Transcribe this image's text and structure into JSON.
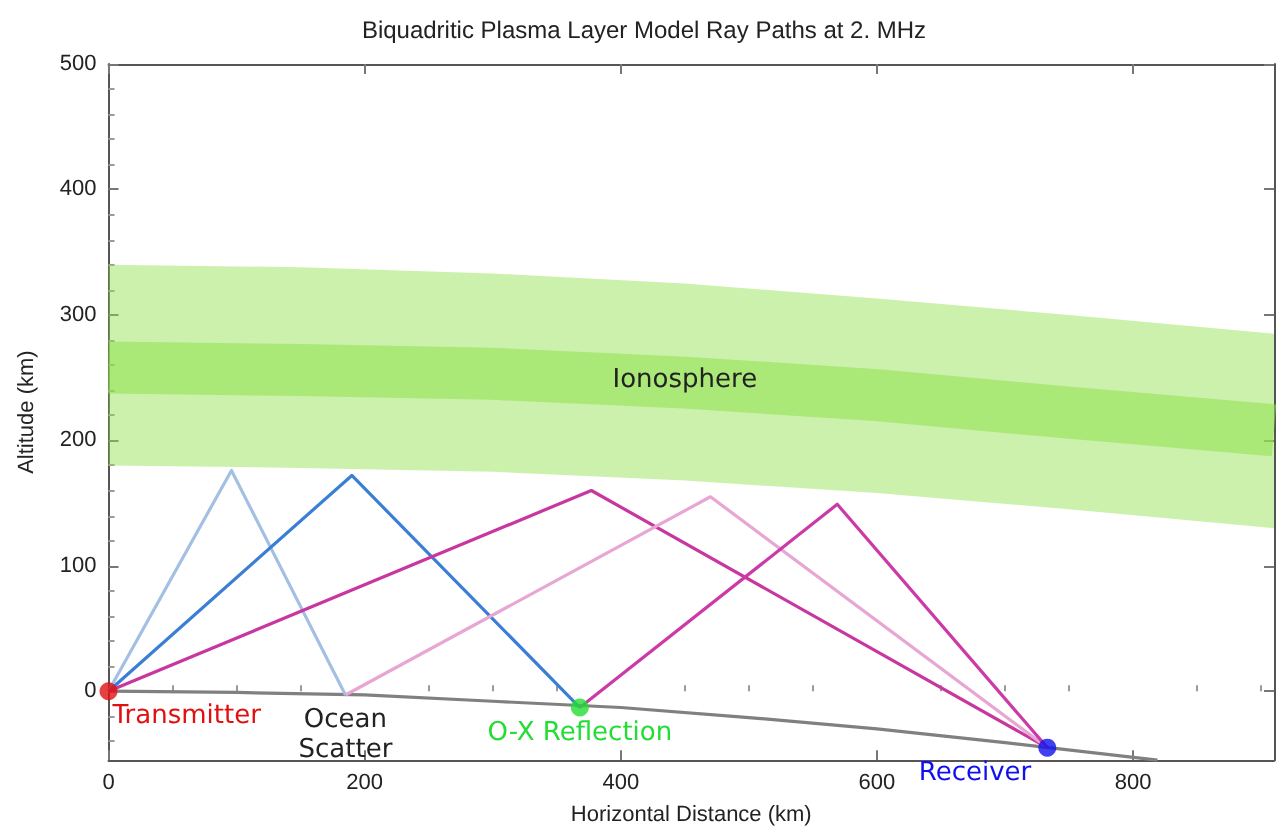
{
  "chart_data": {
    "type": "line",
    "title": "Biquadritic Plasma Layer Model Ray Paths at 2. MHz",
    "xlabel": "Horizontal Distance (km)",
    "ylabel": "Altitude (km)",
    "xlim": [
      0,
      910
    ],
    "ylim": [
      -55,
      500
    ],
    "xticks": [
      0,
      200,
      400,
      600,
      800
    ],
    "yticks": [
      0,
      100,
      200,
      300,
      400,
      500
    ],
    "grid": false,
    "series": [
      {
        "color": "#8ee04a",
        "x": [
          0,
          150,
          300,
          450,
          600,
          750,
          910
        ],
        "values": [
          258,
          256,
          253,
          246,
          236,
          222,
          208
        ],
        "lower": [
          180,
          178,
          175,
          168,
          158,
          145,
          130
        ],
        "upper": [
          340,
          338,
          333,
          325,
          313,
          300,
          285
        ]
      },
      {
        "color": "#808080",
        "x": [
          0,
          100,
          200,
          300,
          400,
          500,
          600,
          700,
          819
        ],
        "values": [
          0,
          -1,
          -3,
          -8,
          -13,
          -21,
          -30,
          -41,
          -55
        ]
      },
      {
        "color": "#a3c0e3",
        "x": [
          0,
          96,
          185
        ],
        "values": [
          0,
          176,
          -3
        ]
      },
      {
        "color": "#3a7fd5",
        "x": [
          0,
          190,
          368
        ],
        "values": [
          0,
          172,
          -13
        ]
      },
      {
        "color": "#c8369f",
        "x": [
          0,
          377,
          733
        ],
        "values": [
          0,
          160,
          -45
        ]
      },
      {
        "color": "#e8a6d4",
        "x": [
          185,
          470,
          733
        ],
        "values": [
          -3,
          155,
          -45
        ]
      },
      {
        "color": "#cc3aa8",
        "x": [
          368,
          569,
          733
        ],
        "values": [
          -13,
          149,
          -45
        ]
      },
      {
        "type": "scatter",
        "marker": "circle",
        "color": "#e01010",
        "x": [
          0
        ],
        "values": [
          0
        ]
      },
      {
        "type": "scatter",
        "marker": "circle",
        "color": "#22dd33",
        "x": [
          368
        ],
        "values": [
          -13
        ]
      },
      {
        "type": "scatter",
        "marker": "circle",
        "color": "#1010ee",
        "x": [
          733
        ],
        "values": [
          -45
        ]
      }
    ],
    "annotations": [
      {
        "text": "Ionosphere",
        "x": 450,
        "y": 248
      },
      {
        "text": "Transmitter",
        "x": 0,
        "y": 0
      },
      {
        "text": "Ocean\nScatter",
        "x": 185,
        "y": -3
      },
      {
        "text": "O-X Reflection",
        "x": 368,
        "y": -13
      },
      {
        "text": "Receiver",
        "x": 733,
        "y": -45
      }
    ]
  }
}
